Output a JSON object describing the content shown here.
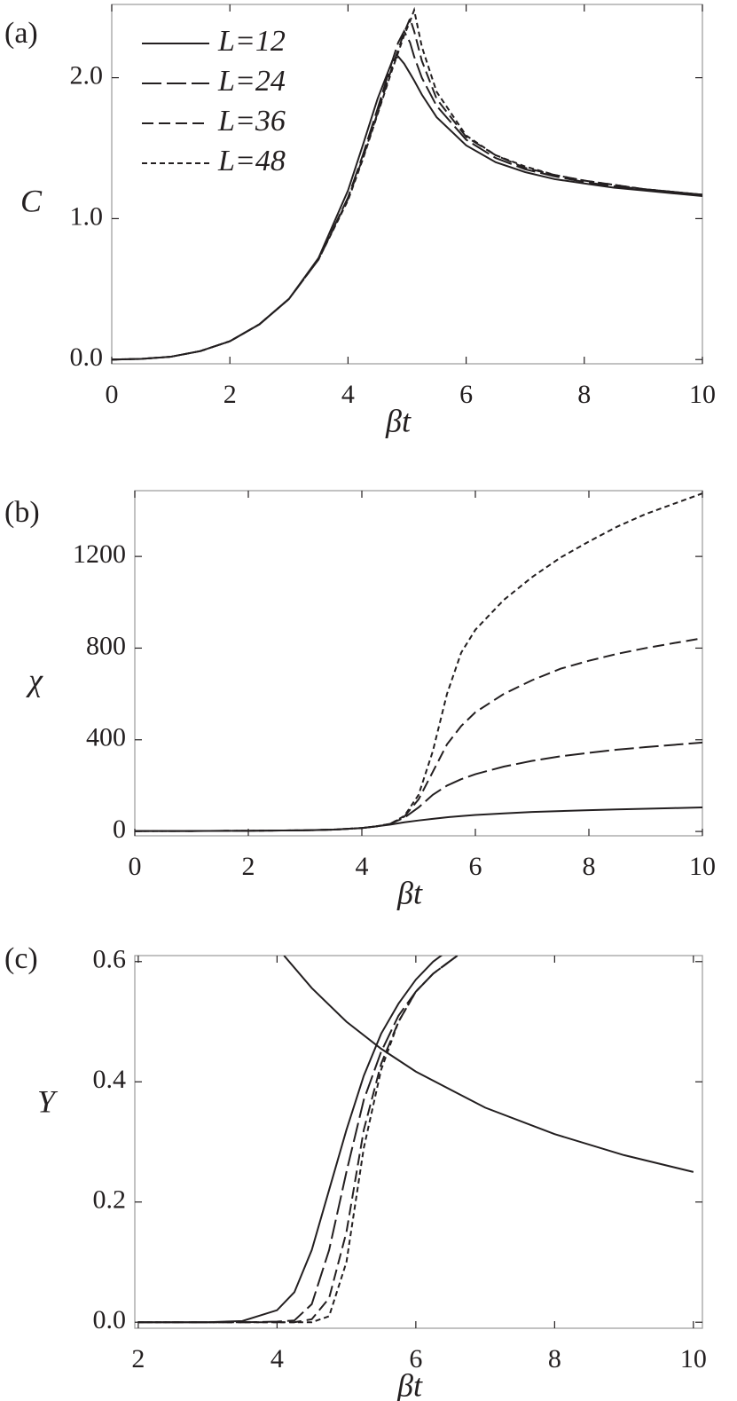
{
  "chart_data": [
    {
      "type": "line",
      "panel_label": "(a)",
      "x_label": "βt",
      "y_label": "C",
      "color": "#231f20",
      "xlim": [
        0,
        10
      ],
      "ylim": [
        -0.03,
        2.52
      ],
      "xticks": [
        0,
        2,
        4,
        6,
        8,
        10
      ],
      "yticks": [
        {
          "value": 0,
          "label": "0.0"
        },
        {
          "value": 1,
          "label": "1.0"
        },
        {
          "value": 2,
          "label": "2.0"
        }
      ],
      "legend": "upper left",
      "x": [
        0,
        0.5,
        1,
        1.5,
        2,
        2.5,
        3,
        3.5,
        4,
        4.25,
        4.5,
        4.75,
        4.85,
        4.95,
        5.05,
        5.12,
        5.25,
        5.5,
        6,
        6.5,
        7,
        7.5,
        8,
        8.5,
        9,
        9.5,
        10
      ],
      "series": [
        {
          "name": "L=12",
          "dash": [],
          "values": [
            0,
            0.005,
            0.02,
            0.06,
            0.13,
            0.25,
            0.43,
            0.72,
            1.2,
            1.52,
            1.85,
            2.12,
            2.15,
            2.1,
            2.03,
            1.98,
            1.88,
            1.72,
            1.52,
            1.4,
            1.33,
            1.28,
            1.25,
            1.22,
            1.2,
            1.18,
            1.16
          ]
        },
        {
          "name": "L=24",
          "dash": [
            22,
            6
          ],
          "values": [
            0,
            0.005,
            0.02,
            0.06,
            0.13,
            0.25,
            0.43,
            0.71,
            1.15,
            1.45,
            1.78,
            2.12,
            2.25,
            2.33,
            2.25,
            2.15,
            2.0,
            1.8,
            1.56,
            1.43,
            1.35,
            1.3,
            1.26,
            1.23,
            1.21,
            1.19,
            1.17
          ]
        },
        {
          "name": "L=36",
          "dash": [
            13,
            6
          ],
          "values": [
            0,
            0.005,
            0.02,
            0.06,
            0.13,
            0.25,
            0.43,
            0.71,
            1.14,
            1.43,
            1.75,
            2.08,
            2.2,
            2.32,
            2.42,
            2.33,
            2.12,
            1.85,
            1.58,
            1.45,
            1.36,
            1.31,
            1.27,
            1.24,
            1.21,
            1.19,
            1.17
          ]
        },
        {
          "name": "L=48",
          "dash": [
            6,
            4
          ],
          "values": [
            0,
            0.005,
            0.02,
            0.06,
            0.13,
            0.25,
            0.43,
            0.71,
            1.13,
            1.42,
            1.74,
            2.06,
            2.18,
            2.3,
            2.4,
            2.48,
            2.22,
            1.9,
            1.59,
            1.45,
            1.37,
            1.31,
            1.27,
            1.24,
            1.21,
            1.19,
            1.17
          ]
        }
      ]
    },
    {
      "type": "line",
      "panel_label": "(b)",
      "x_label": "βt",
      "y_label": "χ",
      "color": "#231f20",
      "xlim": [
        0,
        10
      ],
      "ylim": [
        -19,
        1487
      ],
      "xticks": [
        0,
        2,
        4,
        6,
        8,
        10
      ],
      "yticks": [
        0,
        400,
        800,
        1200
      ],
      "x": [
        0,
        1,
        2,
        3,
        3.5,
        4,
        4.25,
        4.5,
        4.75,
        5,
        5.25,
        5.5,
        5.75,
        6,
        6.5,
        7,
        7.5,
        8,
        8.5,
        9,
        9.5,
        10
      ],
      "series": [
        {
          "dash": [],
          "values": [
            2,
            2,
            3,
            5,
            8,
            15,
            22,
            30,
            40,
            48,
            55,
            62,
            67,
            72,
            79,
            85,
            89,
            93,
            96,
            99,
            102,
            105
          ]
        },
        {
          "dash": [
            22,
            6
          ],
          "values": [
            2,
            2,
            3,
            5,
            8,
            15,
            22,
            33,
            60,
            105,
            160,
            200,
            228,
            250,
            283,
            308,
            328,
            343,
            357,
            368,
            378,
            388
          ]
        },
        {
          "dash": [
            13,
            6
          ],
          "values": [
            2,
            2,
            3,
            5,
            8,
            15,
            22,
            33,
            65,
            140,
            260,
            380,
            460,
            520,
            600,
            660,
            710,
            745,
            775,
            800,
            822,
            843
          ]
        },
        {
          "dash": [
            6,
            4
          ],
          "values": [
            2,
            2,
            3,
            5,
            8,
            15,
            22,
            33,
            68,
            160,
            350,
            600,
            780,
            880,
            1010,
            1110,
            1195,
            1265,
            1330,
            1385,
            1430,
            1475
          ]
        }
      ]
    },
    {
      "type": "line",
      "panel_label": "(c)",
      "x_label": "βt",
      "y_label": "Y",
      "color": "#231f20",
      "xlim": [
        1.95,
        10.13
      ],
      "ylim": [
        -0.01,
        0.61
      ],
      "xticks": [
        2,
        4,
        6,
        8,
        10
      ],
      "yticks": [
        {
          "value": 0,
          "label": "0.0"
        },
        {
          "value": 0.2,
          "label": "0.2"
        },
        {
          "value": 0.4,
          "label": "0.4"
        },
        {
          "value": 0.6,
          "label": "0.6"
        }
      ],
      "x": [
        2,
        3,
        3.5,
        4,
        4.25,
        4.5,
        4.75,
        5,
        5.25,
        5.5,
        5.75,
        6,
        6.25,
        6.6
      ],
      "series": [
        {
          "dash": [],
          "values": [
            0,
            0,
            0.002,
            0.02,
            0.05,
            0.12,
            0.22,
            0.32,
            0.41,
            0.48,
            0.53,
            0.57,
            0.6,
            0.63
          ]
        },
        {
          "dash": [
            22,
            6
          ],
          "values": [
            0,
            0,
            0,
            0.001,
            0.003,
            0.03,
            0.12,
            0.25,
            0.37,
            0.45,
            0.51,
            0.55,
            0.58,
            0.61
          ]
        },
        {
          "dash": [
            13,
            6
          ],
          "values": [
            0,
            0,
            0,
            0,
            0,
            0.005,
            0.04,
            0.15,
            0.32,
            0.43,
            0.5,
            0.55,
            0.58,
            0.61
          ]
        },
        {
          "dash": [
            6,
            4
          ],
          "values": [
            0,
            0,
            0,
            0,
            0,
            0,
            0.01,
            0.1,
            0.29,
            0.42,
            0.5,
            0.55,
            0.58,
            0.61
          ]
        }
      ],
      "reference_line": {
        "x": [
          4.1,
          4.5,
          5,
          5.5,
          6,
          7,
          8,
          9,
          10
        ],
        "values": [
          0.61,
          0.556,
          0.5,
          0.455,
          0.417,
          0.357,
          0.313,
          0.278,
          0.25
        ]
      }
    }
  ]
}
